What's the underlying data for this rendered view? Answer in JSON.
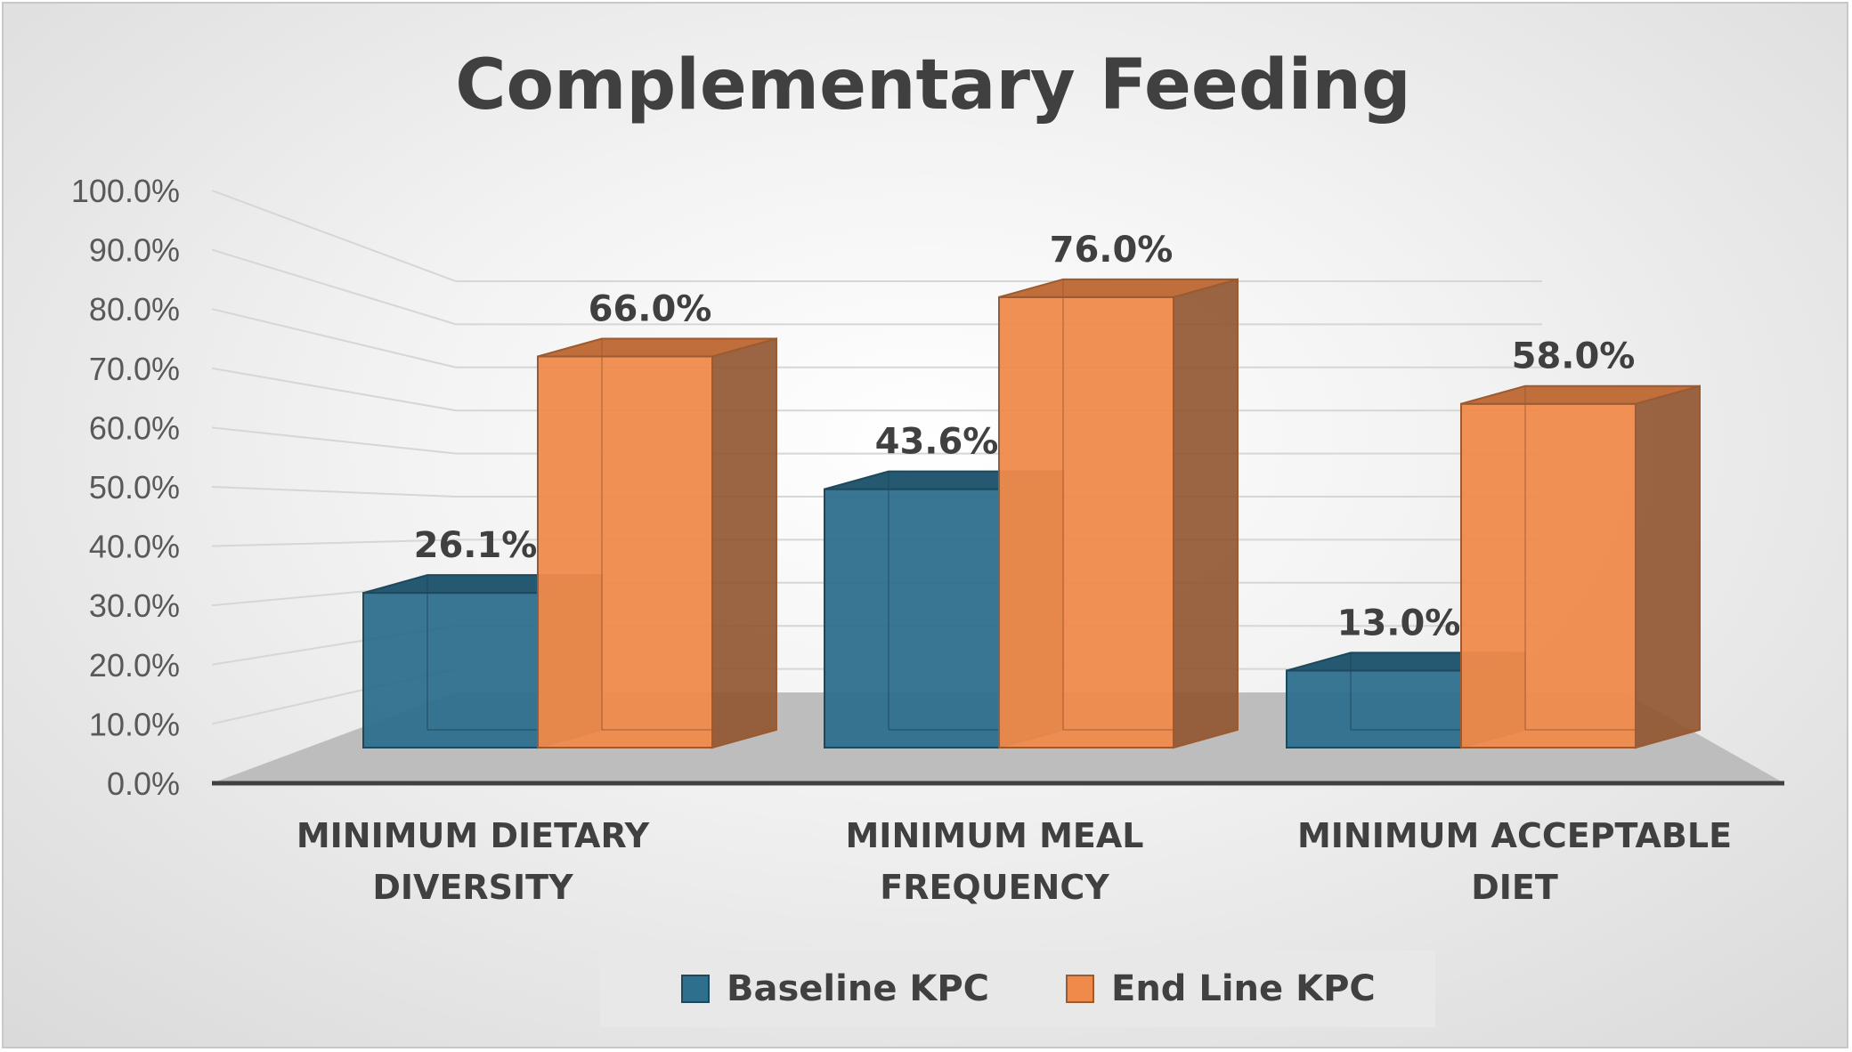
{
  "chart_data": {
    "type": "bar",
    "title": "Complementary Feeding",
    "categories": [
      [
        "MINIMUM DIETARY",
        "DIVERSITY"
      ],
      [
        "MINIMUM MEAL",
        "FREQUENCY"
      ],
      [
        "MINIMUM ACCEPTABLE",
        "DIET"
      ]
    ],
    "series": [
      {
        "name": "Baseline KPC",
        "values": [
          26.1,
          43.6,
          13.0
        ],
        "labels": [
          "26.1%",
          "43.6%",
          "13.0%"
        ],
        "color": "#2e6f8e"
      },
      {
        "name": "End Line KPC",
        "values": [
          66.0,
          76.0,
          58.0
        ],
        "labels": [
          "66.0%",
          "76.0%",
          "58.0%"
        ],
        "color": "#f08a4b"
      }
    ],
    "ylim": [
      0,
      100
    ],
    "yticks": [
      "0.0%",
      "10.0%",
      "20.0%",
      "30.0%",
      "40.0%",
      "50.0%",
      "60.0%",
      "70.0%",
      "80.0%",
      "90.0%",
      "100.0%"
    ],
    "grid": true,
    "legend": "bottom",
    "style": "3d-clustered-column"
  }
}
